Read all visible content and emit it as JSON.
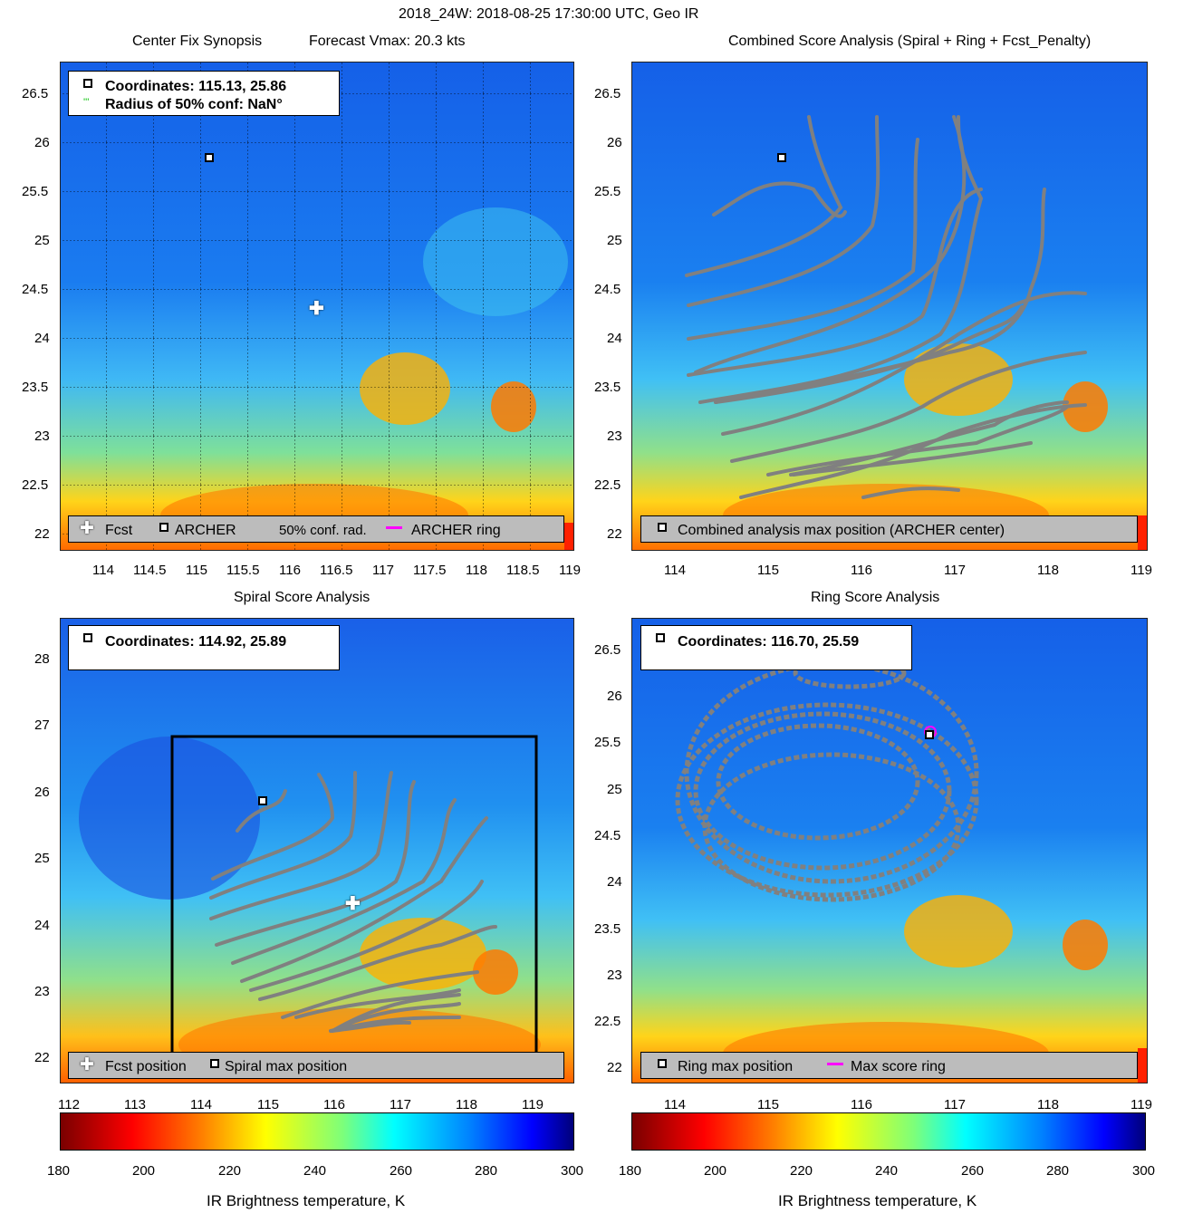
{
  "suptitle": "2018_24W: 2018-08-25 17:30:00 UTC, Geo IR",
  "panels": {
    "synopsis": {
      "title_left": "Center Fix Synopsis",
      "title_right": "Forecast Vmax: 20.3 kts",
      "coords": "Coordinates: 115.13, 25.86",
      "radius": "Radius of 50% conf: NaN°",
      "legend": {
        "fcst": "Fcst",
        "archer": "ARCHER",
        "conf": "50% conf. rad.",
        "ring": "ARCHER ring"
      },
      "xticks": [
        "114",
        "114.5",
        "115",
        "115.5",
        "116",
        "116.5",
        "117",
        "117.5",
        "118",
        "118.5",
        "119"
      ],
      "yticks": [
        "26.5",
        "26",
        "25.5",
        "25",
        "24.5",
        "24",
        "23.5",
        "23",
        "22.5",
        "22"
      ]
    },
    "combined": {
      "title": "Combined Score Analysis (Spiral + Ring + Fcst_Penalty)",
      "legend": "Combined analysis max position (ARCHER center)",
      "xticks": [
        "114",
        "115",
        "116",
        "117",
        "118",
        "119"
      ],
      "yticks": [
        "26.5",
        "26",
        "25.5",
        "25",
        "24.5",
        "24",
        "23.5",
        "23",
        "22.5",
        "22"
      ]
    },
    "spiral": {
      "title": "Spiral Score Analysis",
      "coords": "Coordinates: 114.92, 25.89",
      "legend": {
        "fcst": "Fcst position",
        "max": "Spiral max position"
      },
      "xticks": [
        "112",
        "113",
        "114",
        "115",
        "116",
        "117",
        "118",
        "119"
      ],
      "yticks": [
        "28",
        "27",
        "26",
        "25",
        "24",
        "23",
        "22"
      ]
    },
    "ring": {
      "title": "Ring Score Analysis",
      "coords": "Coordinates: 116.70, 25.59",
      "legend": {
        "max": "Ring max position",
        "ring": "Max score ring"
      },
      "xticks": [
        "114",
        "115",
        "116",
        "117",
        "118",
        "119"
      ],
      "yticks": [
        "26.5",
        "26",
        "25.5",
        "25",
        "24.5",
        "24",
        "23.5",
        "23",
        "22.5",
        "22"
      ]
    }
  },
  "colorbar": {
    "ticks": [
      "180",
      "200",
      "220",
      "240",
      "260",
      "280",
      "300"
    ],
    "label": "IR Brightness temperature, K"
  },
  "colors": {
    "contour": "#808080",
    "ring": "#ff00ff",
    "grid": "#000000"
  }
}
